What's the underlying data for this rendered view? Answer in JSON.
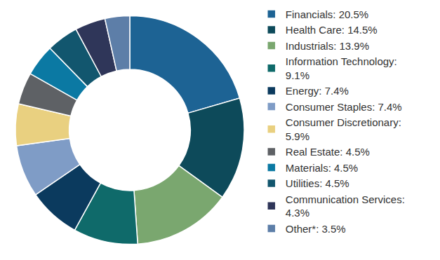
{
  "chart_data": {
    "type": "donut",
    "categories": [
      "Financials: 20.5%",
      "Health Care: 14.5%",
      "Industrials: 13.9%",
      "Information Technology: 9.1%",
      "Energy: 7.4%",
      "Consumer Staples: 7.4%",
      "Consumer Discretionary: 5.9%",
      "Real Estate: 4.5%",
      "Materials: 4.5%",
      "Utilities: 4.5%",
      "Communication Services: 4.3%",
      "Other*: 3.5%"
    ],
    "values": [
      20.5,
      14.5,
      13.9,
      9.1,
      7.4,
      7.4,
      5.9,
      4.5,
      4.5,
      4.5,
      4.3,
      3.5
    ],
    "colors": [
      "#1d6394",
      "#0d4a5a",
      "#7aa76f",
      "#0f6a6a",
      "#0b3a5e",
      "#7f9cc6",
      "#e9d080",
      "#5e6165",
      "#0b79a3",
      "#12566e",
      "#2f3659",
      "#5d7ea8"
    ],
    "legend": "right"
  }
}
